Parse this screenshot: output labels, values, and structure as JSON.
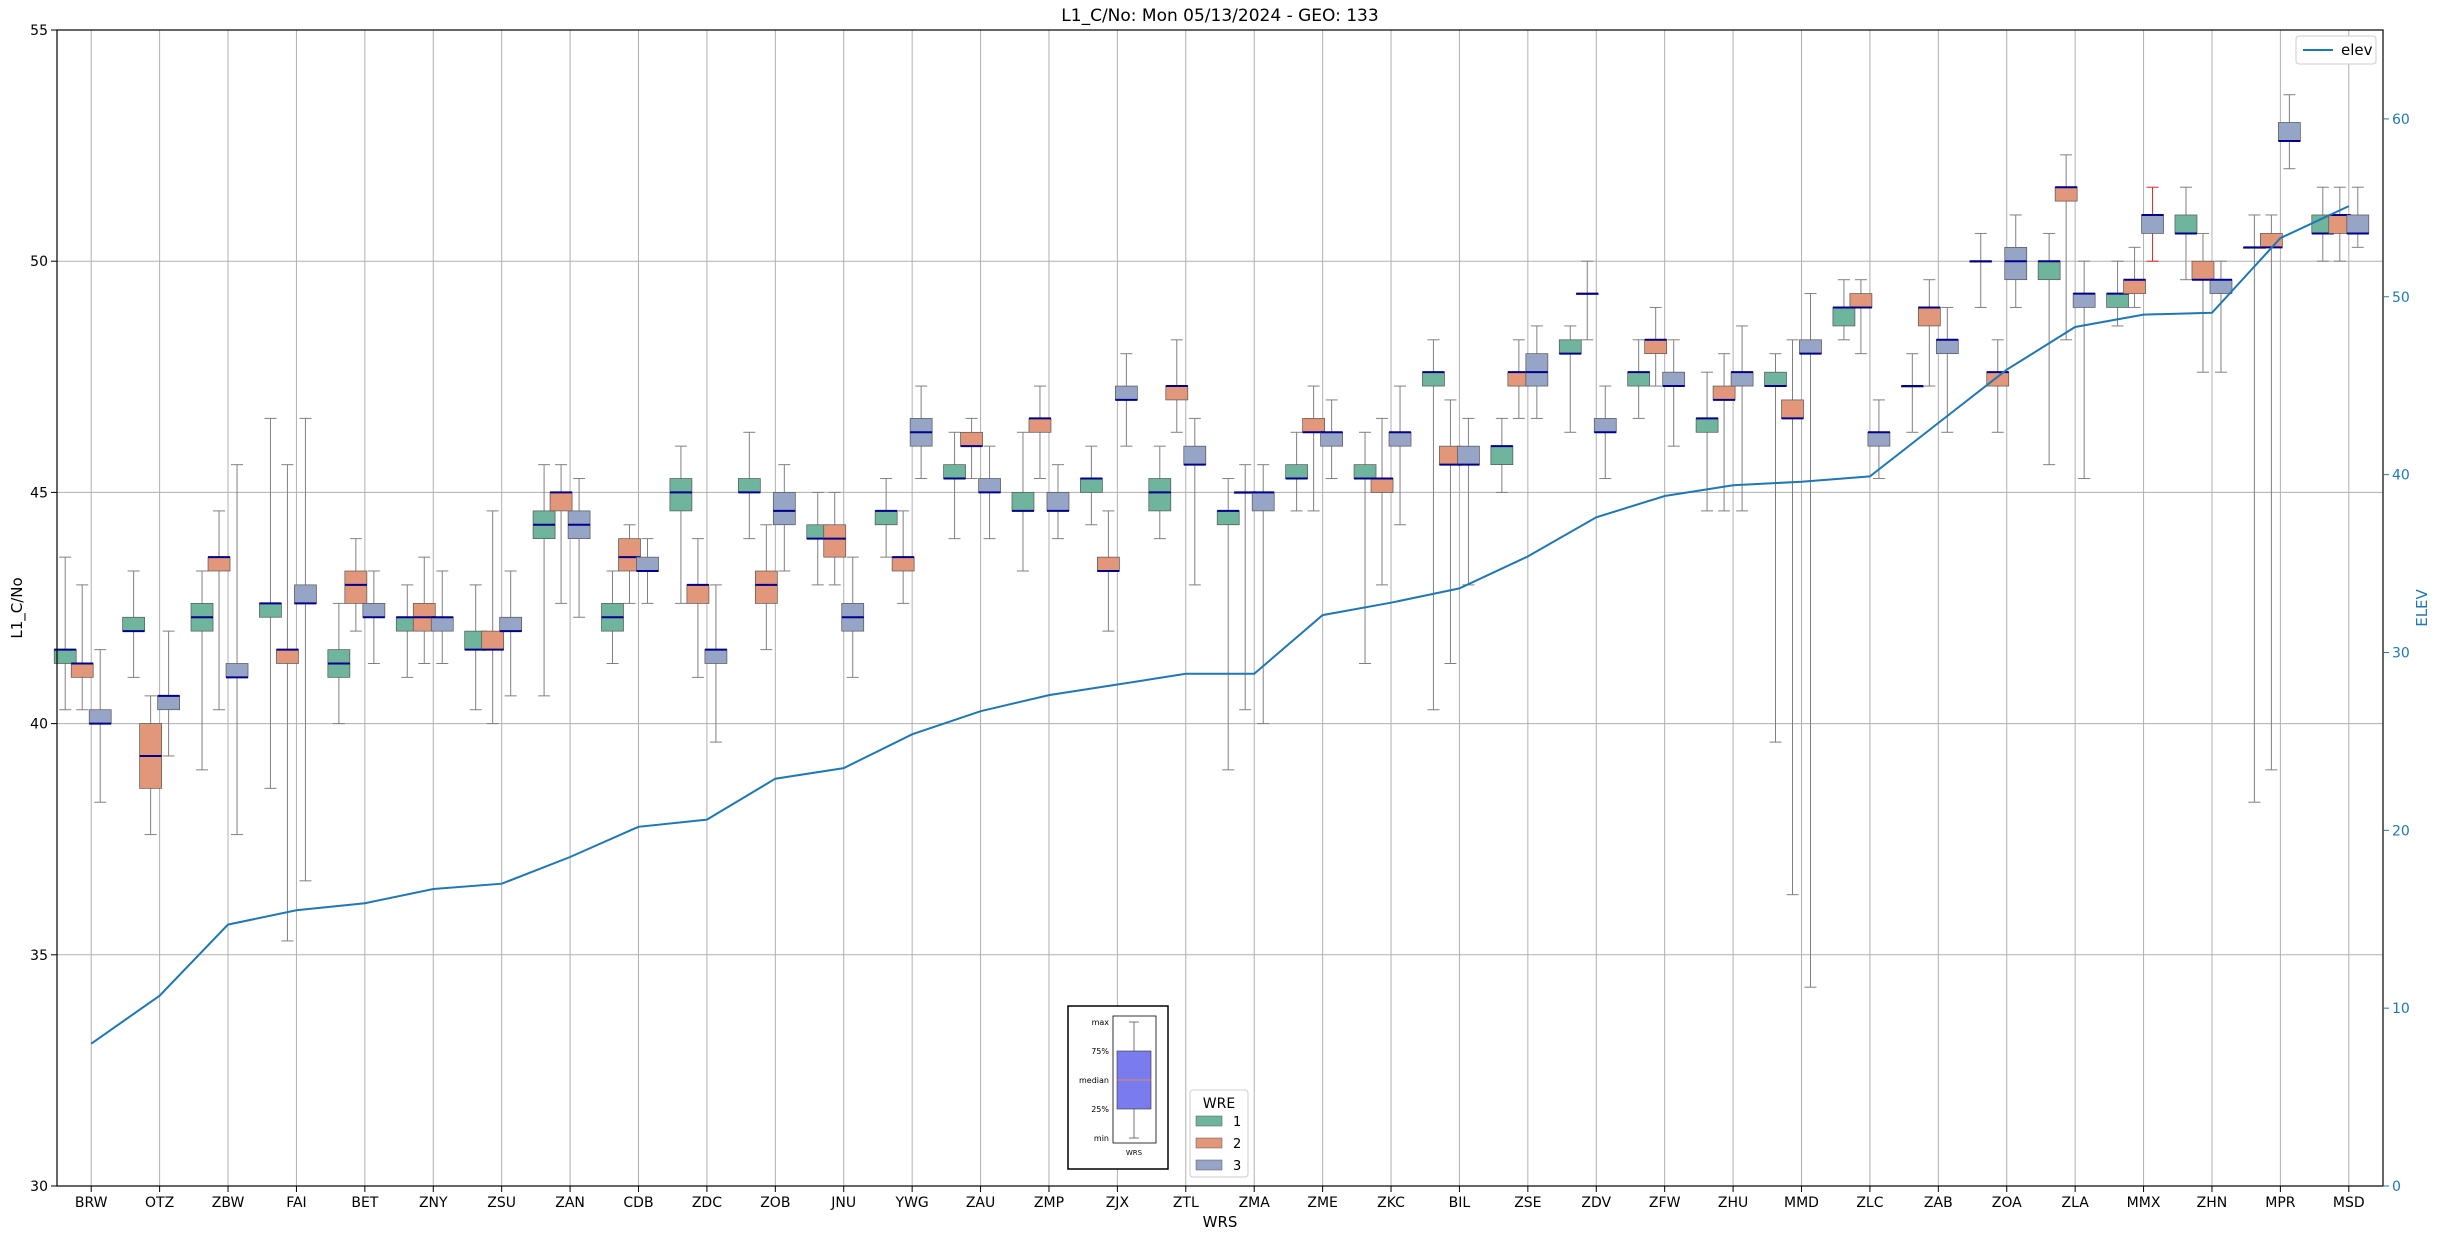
{
  "chart_data": {
    "type": "box",
    "title": "L1_C/No: Mon 05/13/2024 - GEO: 133",
    "xlabel": "WRS",
    "ylabel": "L1_C/No",
    "y2label": "ELEV",
    "ylim": [
      30,
      55
    ],
    "y2lim": [
      0,
      65
    ],
    "yticks": [
      30,
      35,
      40,
      45,
      50,
      55
    ],
    "y2ticks": [
      0,
      10,
      20,
      30,
      40,
      50,
      60
    ],
    "grid": true,
    "categories": [
      "BRW",
      "OTZ",
      "ZBW",
      "FAI",
      "BET",
      "ZNY",
      "ZSU",
      "ZAN",
      "CDB",
      "ZDC",
      "ZOB",
      "JNU",
      "YWG",
      "ZAU",
      "ZMP",
      "ZJX",
      "ZTL",
      "ZMA",
      "ZME",
      "ZKC",
      "BIL",
      "ZSE",
      "ZDV",
      "ZFW",
      "ZHU",
      "MMD",
      "ZLC",
      "ZAB",
      "ZOA",
      "ZLA",
      "MMX",
      "ZHN",
      "MPR",
      "MSD"
    ],
    "series_legend": {
      "title": "WRE",
      "placement": "lower-center",
      "entries": [
        {
          "name": "1",
          "color": "#6fb49c"
        },
        {
          "name": "2",
          "color": "#e3977a"
        },
        {
          "name": "3",
          "color": "#96a4c6"
        }
      ]
    },
    "line_legend": {
      "name": "elev",
      "placement": "top-right",
      "color": "#1f77b4"
    },
    "box_key": {
      "labels": [
        "max",
        "75%",
        "median",
        "25%",
        "min"
      ],
      "xlabel": "WRS"
    },
    "boxes": [
      {
        "cat": "BRW",
        "wre": "1",
        "min": 40.3,
        "q1": 41.3,
        "median": 41.6,
        "q3": 41.6,
        "max": 43.6
      },
      {
        "cat": "BRW",
        "wre": "2",
        "min": 40.3,
        "q1": 41.0,
        "median": 41.3,
        "q3": 41.3,
        "max": 43.0
      },
      {
        "cat": "BRW",
        "wre": "3",
        "min": 38.3,
        "q1": 40.0,
        "median": 40.0,
        "q3": 40.3,
        "max": 41.6
      },
      {
        "cat": "OTZ",
        "wre": "1",
        "min": 41.0,
        "q1": 42.0,
        "median": 42.0,
        "q3": 42.3,
        "max": 43.3
      },
      {
        "cat": "OTZ",
        "wre": "2",
        "min": 37.6,
        "q1": 38.6,
        "median": 39.3,
        "q3": 40.0,
        "max": 40.6
      },
      {
        "cat": "OTZ",
        "wre": "3",
        "min": 39.3,
        "q1": 40.3,
        "median": 40.6,
        "q3": 40.6,
        "max": 42.0
      },
      {
        "cat": "ZBW",
        "wre": "1",
        "min": 39.0,
        "q1": 42.0,
        "median": 42.3,
        "q3": 42.6,
        "max": 43.3
      },
      {
        "cat": "ZBW",
        "wre": "2",
        "min": 40.3,
        "q1": 43.3,
        "median": 43.6,
        "q3": 43.6,
        "max": 44.6
      },
      {
        "cat": "ZBW",
        "wre": "3",
        "min": 37.6,
        "q1": 41.0,
        "median": 41.0,
        "q3": 41.3,
        "max": 45.6
      },
      {
        "cat": "FAI",
        "wre": "1",
        "min": 38.6,
        "q1": 42.3,
        "median": 42.6,
        "q3": 42.6,
        "max": 46.6
      },
      {
        "cat": "FAI",
        "wre": "2",
        "min": 35.3,
        "q1": 41.3,
        "median": 41.6,
        "q3": 41.6,
        "max": 45.6
      },
      {
        "cat": "FAI",
        "wre": "3",
        "min": 36.6,
        "q1": 42.6,
        "median": 42.6,
        "q3": 43.0,
        "max": 46.6
      },
      {
        "cat": "BET",
        "wre": "1",
        "min": 40.0,
        "q1": 41.0,
        "median": 41.3,
        "q3": 41.6,
        "max": 42.6
      },
      {
        "cat": "BET",
        "wre": "2",
        "min": 42.0,
        "q1": 42.6,
        "median": 43.0,
        "q3": 43.3,
        "max": 44.0
      },
      {
        "cat": "BET",
        "wre": "3",
        "min": 41.3,
        "q1": 42.3,
        "median": 42.3,
        "q3": 42.6,
        "max": 43.3
      },
      {
        "cat": "ZNY",
        "wre": "1",
        "min": 41.0,
        "q1": 42.0,
        "median": 42.3,
        "q3": 42.3,
        "max": 43.0
      },
      {
        "cat": "ZNY",
        "wre": "2",
        "min": 41.3,
        "q1": 42.0,
        "median": 42.3,
        "q3": 42.6,
        "max": 43.6
      },
      {
        "cat": "ZNY",
        "wre": "3",
        "min": 41.3,
        "q1": 42.0,
        "median": 42.3,
        "q3": 42.3,
        "max": 43.3
      },
      {
        "cat": "ZSU",
        "wre": "1",
        "min": 40.3,
        "q1": 41.6,
        "median": 41.6,
        "q3": 42.0,
        "max": 43.0
      },
      {
        "cat": "ZSU",
        "wre": "2",
        "min": 40.0,
        "q1": 41.6,
        "median": 41.6,
        "q3": 42.0,
        "max": 44.6
      },
      {
        "cat": "ZSU",
        "wre": "3",
        "min": 40.6,
        "q1": 42.0,
        "median": 42.0,
        "q3": 42.3,
        "max": 43.3
      },
      {
        "cat": "ZAN",
        "wre": "1",
        "min": 40.6,
        "q1": 44.0,
        "median": 44.3,
        "q3": 44.6,
        "max": 45.6
      },
      {
        "cat": "ZAN",
        "wre": "2",
        "min": 42.6,
        "q1": 44.6,
        "median": 45.0,
        "q3": 45.0,
        "max": 45.6
      },
      {
        "cat": "ZAN",
        "wre": "3",
        "min": 42.3,
        "q1": 44.0,
        "median": 44.3,
        "q3": 44.6,
        "max": 45.3
      },
      {
        "cat": "CDB",
        "wre": "1",
        "min": 41.3,
        "q1": 42.0,
        "median": 42.3,
        "q3": 42.6,
        "max": 43.3
      },
      {
        "cat": "CDB",
        "wre": "2",
        "min": 42.6,
        "q1": 43.3,
        "median": 43.6,
        "q3": 44.0,
        "max": 44.3
      },
      {
        "cat": "CDB",
        "wre": "3",
        "min": 42.6,
        "q1": 43.3,
        "median": 43.3,
        "q3": 43.6,
        "max": 44.0
      },
      {
        "cat": "ZDC",
        "wre": "1",
        "min": 42.6,
        "q1": 44.6,
        "median": 45.0,
        "q3": 45.3,
        "max": 46.0
      },
      {
        "cat": "ZDC",
        "wre": "2",
        "min": 41.0,
        "q1": 42.6,
        "median": 43.0,
        "q3": 43.0,
        "max": 44.0
      },
      {
        "cat": "ZDC",
        "wre": "3",
        "min": 39.6,
        "q1": 41.3,
        "median": 41.6,
        "q3": 41.6,
        "max": 43.0
      },
      {
        "cat": "ZOB",
        "wre": "1",
        "min": 44.0,
        "q1": 45.0,
        "median": 45.0,
        "q3": 45.3,
        "max": 46.3
      },
      {
        "cat": "ZOB",
        "wre": "2",
        "min": 41.6,
        "q1": 42.6,
        "median": 43.0,
        "q3": 43.3,
        "max": 44.3
      },
      {
        "cat": "ZOB",
        "wre": "3",
        "min": 43.3,
        "q1": 44.3,
        "median": 44.6,
        "q3": 45.0,
        "max": 45.6
      },
      {
        "cat": "JNU",
        "wre": "1",
        "min": 43.0,
        "q1": 44.0,
        "median": 44.0,
        "q3": 44.3,
        "max": 45.0
      },
      {
        "cat": "JNU",
        "wre": "2",
        "min": 43.0,
        "q1": 43.6,
        "median": 44.0,
        "q3": 44.3,
        "max": 45.0
      },
      {
        "cat": "JNU",
        "wre": "3",
        "min": 41.0,
        "q1": 42.0,
        "median": 42.3,
        "q3": 42.6,
        "max": 43.6
      },
      {
        "cat": "YWG",
        "wre": "1",
        "min": 43.6,
        "q1": 44.3,
        "median": 44.6,
        "q3": 44.6,
        "max": 45.3
      },
      {
        "cat": "YWG",
        "wre": "2",
        "min": 42.6,
        "q1": 43.3,
        "median": 43.6,
        "q3": 43.6,
        "max": 44.6
      },
      {
        "cat": "YWG",
        "wre": "3",
        "min": 45.3,
        "q1": 46.0,
        "median": 46.3,
        "q3": 46.6,
        "max": 47.3
      },
      {
        "cat": "ZAU",
        "wre": "1",
        "min": 44.0,
        "q1": 45.3,
        "median": 45.3,
        "q3": 45.6,
        "max": 46.3
      },
      {
        "cat": "ZAU",
        "wre": "2",
        "min": 45.3,
        "q1": 46.0,
        "median": 46.0,
        "q3": 46.3,
        "max": 46.6
      },
      {
        "cat": "ZAU",
        "wre": "3",
        "min": 44.0,
        "q1": 45.0,
        "median": 45.0,
        "q3": 45.3,
        "max": 46.0
      },
      {
        "cat": "ZMP",
        "wre": "1",
        "min": 43.3,
        "q1": 44.6,
        "median": 44.6,
        "q3": 45.0,
        "max": 46.3
      },
      {
        "cat": "ZMP",
        "wre": "2",
        "min": 45.3,
        "q1": 46.3,
        "median": 46.6,
        "q3": 46.6,
        "max": 47.3
      },
      {
        "cat": "ZMP",
        "wre": "3",
        "min": 44.0,
        "q1": 44.6,
        "median": 44.6,
        "q3": 45.0,
        "max": 45.6
      },
      {
        "cat": "ZJX",
        "wre": "1",
        "min": 44.3,
        "q1": 45.0,
        "median": 45.3,
        "q3": 45.3,
        "max": 46.0
      },
      {
        "cat": "ZJX",
        "wre": "2",
        "min": 42.0,
        "q1": 43.3,
        "median": 43.3,
        "q3": 43.6,
        "max": 44.6
      },
      {
        "cat": "ZJX",
        "wre": "3",
        "min": 46.0,
        "q1": 47.0,
        "median": 47.0,
        "q3": 47.3,
        "max": 48.0
      },
      {
        "cat": "ZTL",
        "wre": "1",
        "min": 44.0,
        "q1": 44.6,
        "median": 45.0,
        "q3": 45.3,
        "max": 46.0
      },
      {
        "cat": "ZTL",
        "wre": "2",
        "min": 46.3,
        "q1": 47.0,
        "median": 47.3,
        "q3": 47.3,
        "max": 48.3
      },
      {
        "cat": "ZTL",
        "wre": "3",
        "min": 43.0,
        "q1": 45.6,
        "median": 45.6,
        "q3": 46.0,
        "max": 46.6
      },
      {
        "cat": "ZMA",
        "wre": "1",
        "min": 39.0,
        "q1": 44.3,
        "median": 44.6,
        "q3": 44.6,
        "max": 45.3
      },
      {
        "cat": "ZMA",
        "wre": "2",
        "min": 40.3,
        "q1": 45.0,
        "median": 45.0,
        "q3": 45.0,
        "max": 45.6
      },
      {
        "cat": "ZMA",
        "wre": "3",
        "min": 40.0,
        "q1": 44.6,
        "median": 45.0,
        "q3": 45.0,
        "max": 45.6
      },
      {
        "cat": "ZME",
        "wre": "1",
        "min": 44.6,
        "q1": 45.3,
        "median": 45.3,
        "q3": 45.6,
        "max": 46.3
      },
      {
        "cat": "ZME",
        "wre": "2",
        "min": 44.6,
        "q1": 46.3,
        "median": 46.3,
        "q3": 46.6,
        "max": 47.3
      },
      {
        "cat": "ZME",
        "wre": "3",
        "min": 45.3,
        "q1": 46.0,
        "median": 46.3,
        "q3": 46.3,
        "max": 47.0
      },
      {
        "cat": "ZKC",
        "wre": "1",
        "min": 41.3,
        "q1": 45.3,
        "median": 45.3,
        "q3": 45.6,
        "max": 46.3
      },
      {
        "cat": "ZKC",
        "wre": "2",
        "min": 43.0,
        "q1": 45.0,
        "median": 45.3,
        "q3": 45.3,
        "max": 46.6
      },
      {
        "cat": "ZKC",
        "wre": "3",
        "min": 44.3,
        "q1": 46.0,
        "median": 46.3,
        "q3": 46.3,
        "max": 47.3
      },
      {
        "cat": "BIL",
        "wre": "1",
        "min": 40.3,
        "q1": 47.3,
        "median": 47.6,
        "q3": 47.6,
        "max": 48.3
      },
      {
        "cat": "BIL",
        "wre": "2",
        "min": 41.3,
        "q1": 45.6,
        "median": 45.6,
        "q3": 46.0,
        "max": 47.0
      },
      {
        "cat": "BIL",
        "wre": "3",
        "min": 43.0,
        "q1": 45.6,
        "median": 45.6,
        "q3": 46.0,
        "max": 46.6
      },
      {
        "cat": "ZSE",
        "wre": "1",
        "min": 45.0,
        "q1": 45.6,
        "median": 46.0,
        "q3": 46.0,
        "max": 46.6
      },
      {
        "cat": "ZSE",
        "wre": "2",
        "min": 46.6,
        "q1": 47.3,
        "median": 47.6,
        "q3": 47.6,
        "max": 48.3
      },
      {
        "cat": "ZSE",
        "wre": "3",
        "min": 46.6,
        "q1": 47.3,
        "median": 47.6,
        "q3": 48.0,
        "max": 48.6
      },
      {
        "cat": "ZDV",
        "wre": "1",
        "min": 46.3,
        "q1": 48.0,
        "median": 48.0,
        "q3": 48.3,
        "max": 48.6
      },
      {
        "cat": "ZDV",
        "wre": "2",
        "min": 48.3,
        "q1": 49.3,
        "median": 49.3,
        "q3": 49.3,
        "max": 50.0
      },
      {
        "cat": "ZDV",
        "wre": "3",
        "min": 45.3,
        "q1": 46.3,
        "median": 46.3,
        "q3": 46.6,
        "max": 47.3
      },
      {
        "cat": "ZFW",
        "wre": "1",
        "min": 46.6,
        "q1": 47.3,
        "median": 47.6,
        "q3": 47.6,
        "max": 48.3
      },
      {
        "cat": "ZFW",
        "wre": "2",
        "min": 47.3,
        "q1": 48.0,
        "median": 48.3,
        "q3": 48.3,
        "max": 49.0
      },
      {
        "cat": "ZFW",
        "wre": "3",
        "min": 46.0,
        "q1": 47.3,
        "median": 47.3,
        "q3": 47.6,
        "max": 48.3
      },
      {
        "cat": "ZHU",
        "wre": "1",
        "min": 44.6,
        "q1": 46.3,
        "median": 46.6,
        "q3": 46.6,
        "max": 47.6
      },
      {
        "cat": "ZHU",
        "wre": "2",
        "min": 44.6,
        "q1": 47.0,
        "median": 47.0,
        "q3": 47.3,
        "max": 48.0
      },
      {
        "cat": "ZHU",
        "wre": "3",
        "min": 44.6,
        "q1": 47.3,
        "median": 47.6,
        "q3": 47.6,
        "max": 48.6
      },
      {
        "cat": "MMD",
        "wre": "1",
        "min": 39.6,
        "q1": 47.3,
        "median": 47.3,
        "q3": 47.6,
        "max": 48.0
      },
      {
        "cat": "MMD",
        "wre": "2",
        "min": 36.3,
        "q1": 46.6,
        "median": 46.6,
        "q3": 47.0,
        "max": 48.3
      },
      {
        "cat": "MMD",
        "wre": "3",
        "min": 34.3,
        "q1": 48.0,
        "median": 48.0,
        "q3": 48.3,
        "max": 49.3
      },
      {
        "cat": "ZLC",
        "wre": "1",
        "min": 48.3,
        "q1": 48.6,
        "median": 49.0,
        "q3": 49.0,
        "max": 49.6
      },
      {
        "cat": "ZLC",
        "wre": "2",
        "min": 48.0,
        "q1": 49.0,
        "median": 49.0,
        "q3": 49.3,
        "max": 49.6
      },
      {
        "cat": "ZLC",
        "wre": "3",
        "min": 45.3,
        "q1": 46.0,
        "median": 46.3,
        "q3": 46.3,
        "max": 47.0
      },
      {
        "cat": "ZAB",
        "wre": "1",
        "min": 46.3,
        "q1": 47.3,
        "median": 47.3,
        "q3": 47.3,
        "max": 48.0
      },
      {
        "cat": "ZAB",
        "wre": "2",
        "min": 47.3,
        "q1": 48.6,
        "median": 49.0,
        "q3": 49.0,
        "max": 49.6
      },
      {
        "cat": "ZAB",
        "wre": "3",
        "min": 46.3,
        "q1": 48.0,
        "median": 48.3,
        "q3": 48.3,
        "max": 49.0
      },
      {
        "cat": "ZOA",
        "wre": "1",
        "min": 49.0,
        "q1": 50.0,
        "median": 50.0,
        "q3": 50.0,
        "max": 50.6
      },
      {
        "cat": "ZOA",
        "wre": "2",
        "min": 46.3,
        "q1": 47.3,
        "median": 47.6,
        "q3": 47.6,
        "max": 48.3
      },
      {
        "cat": "ZOA",
        "wre": "3",
        "min": 49.0,
        "q1": 49.6,
        "median": 50.0,
        "q3": 50.3,
        "max": 51.0
      },
      {
        "cat": "ZLA",
        "wre": "1",
        "min": 45.6,
        "q1": 49.6,
        "median": 50.0,
        "q3": 50.0,
        "max": 50.6
      },
      {
        "cat": "ZLA",
        "wre": "2",
        "min": 48.3,
        "q1": 51.3,
        "median": 51.6,
        "q3": 51.6,
        "max": 52.3
      },
      {
        "cat": "ZLA",
        "wre": "3",
        "min": 45.3,
        "q1": 49.0,
        "median": 49.3,
        "q3": 49.3,
        "max": 50.0
      },
      {
        "cat": "MMX",
        "wre": "1",
        "min": 48.6,
        "q1": 49.0,
        "median": 49.3,
        "q3": 49.3,
        "max": 50.0
      },
      {
        "cat": "MMX",
        "wre": "2",
        "min": 49.0,
        "q1": 49.3,
        "median": 49.6,
        "q3": 49.6,
        "max": 50.3
      },
      {
        "cat": "MMX",
        "wre": "3",
        "min": 50.0,
        "q1": 50.6,
        "median": 51.0,
        "q3": 51.0,
        "max": 51.6,
        "whisker_color": "#d62728"
      },
      {
        "cat": "ZHN",
        "wre": "1",
        "min": 49.6,
        "q1": 50.6,
        "median": 50.6,
        "q3": 51.0,
        "max": 51.6
      },
      {
        "cat": "ZHN",
        "wre": "2",
        "min": 47.6,
        "q1": 49.6,
        "median": 49.6,
        "q3": 50.0,
        "max": 50.6
      },
      {
        "cat": "ZHN",
        "wre": "3",
        "min": 47.6,
        "q1": 49.3,
        "median": 49.6,
        "q3": 49.6,
        "max": 50.0
      },
      {
        "cat": "MPR",
        "wre": "1",
        "min": 38.3,
        "q1": 50.3,
        "median": 50.3,
        "q3": 50.3,
        "max": 51.0
      },
      {
        "cat": "MPR",
        "wre": "2",
        "min": 39.0,
        "q1": 50.3,
        "median": 50.3,
        "q3": 50.6,
        "max": 51.0
      },
      {
        "cat": "MPR",
        "wre": "3",
        "min": 52.0,
        "q1": 52.6,
        "median": 52.6,
        "q3": 53.0,
        "max": 53.6
      },
      {
        "cat": "MSD",
        "wre": "1",
        "min": 50.0,
        "q1": 50.6,
        "median": 50.6,
        "q3": 51.0,
        "max": 51.6
      },
      {
        "cat": "MSD",
        "wre": "2",
        "min": 50.0,
        "q1": 50.6,
        "median": 51.0,
        "q3": 51.0,
        "max": 51.6
      },
      {
        "cat": "MSD",
        "wre": "3",
        "min": 50.3,
        "q1": 50.6,
        "median": 50.6,
        "q3": 51.0,
        "max": 51.6
      }
    ],
    "elev_series": {
      "name": "elev",
      "values": [
        8.0,
        10.7,
        14.7,
        15.5,
        15.9,
        16.7,
        17.0,
        18.5,
        20.2,
        20.6,
        22.9,
        23.5,
        25.4,
        26.7,
        27.6,
        28.2,
        28.8,
        28.8,
        32.1,
        32.8,
        33.6,
        35.4,
        37.6,
        38.8,
        39.4,
        39.6,
        39.9,
        42.9,
        45.9,
        48.3,
        49.0,
        49.1,
        53.3,
        55.1
      ]
    },
    "colors": {
      "wre1": "#6fb49c",
      "wre2": "#e3977a",
      "wre3": "#96a4c6",
      "median": "#00008b",
      "whisker": "#808080",
      "elev": "#1f77b4",
      "grid": "#b0b0b0",
      "key_box": "#7b7bf0",
      "key_median": "#e08a5a"
    }
  }
}
